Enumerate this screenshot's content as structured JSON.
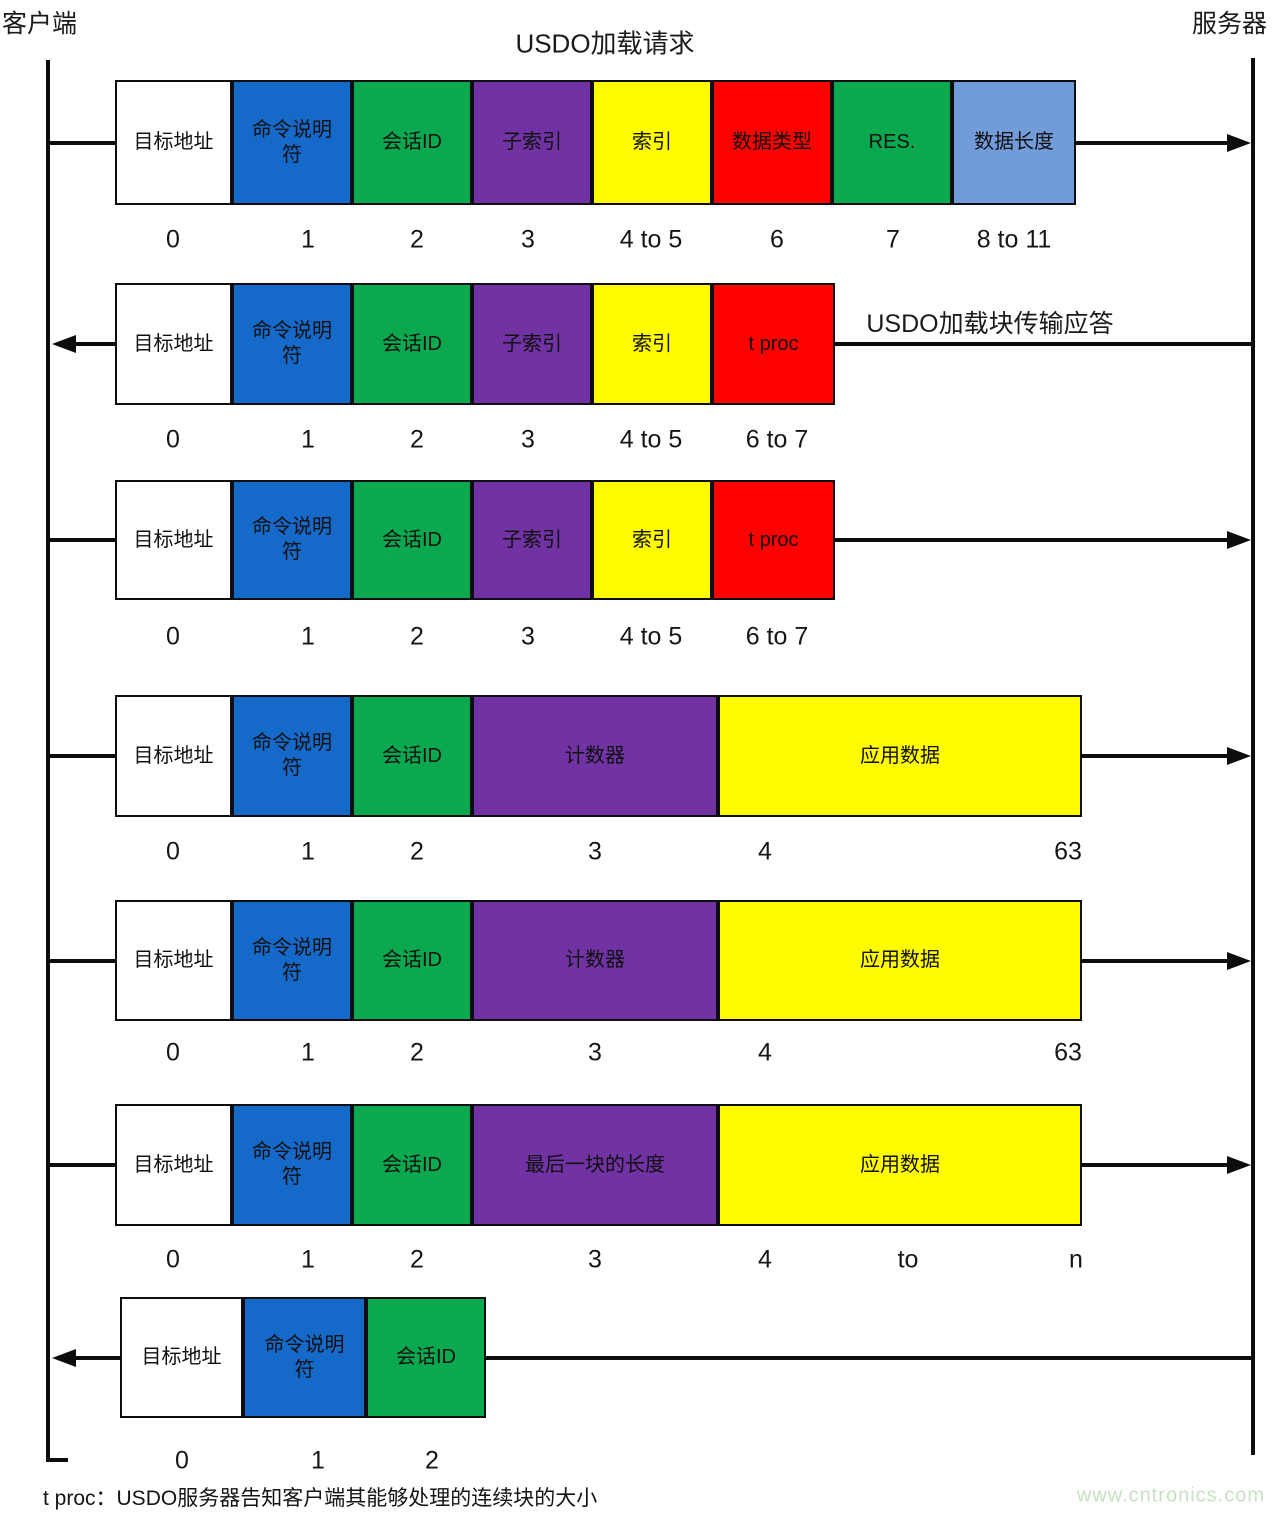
{
  "actors": {
    "client": "客户端",
    "server": "服务器"
  },
  "titles": {
    "request": "USDO加载请求",
    "response": "USDO加载块传输应答"
  },
  "colors": {
    "white": "#ffffff",
    "blue": "#1569c8",
    "green": "#0ba94f",
    "purple": "#7133a4",
    "yellow": "#fffc00",
    "red": "#fe0000",
    "lightblue": "#729bd9"
  },
  "rows": [
    {
      "direction": "to-server",
      "cells": [
        {
          "label": "目标地址",
          "color": "white"
        },
        {
          "label": "命令说明\n符",
          "color": "blue"
        },
        {
          "label": "会话ID",
          "color": "green"
        },
        {
          "label": "子索引",
          "color": "purple"
        },
        {
          "label": "索引",
          "color": "yellow"
        },
        {
          "label": "数据类型",
          "color": "red"
        },
        {
          "label": "RES.",
          "color": "green"
        },
        {
          "label": "数据长度",
          "color": "lightblue"
        }
      ],
      "bytes": [
        "0",
        "1",
        "2",
        "3",
        "4 to 5",
        "6",
        "7",
        "8 to 11"
      ]
    },
    {
      "direction": "to-client",
      "cells": [
        {
          "label": "目标地址",
          "color": "white"
        },
        {
          "label": "命令说明\n符",
          "color": "blue"
        },
        {
          "label": "会话ID",
          "color": "green"
        },
        {
          "label": "子索引",
          "color": "purple"
        },
        {
          "label": "索引",
          "color": "yellow"
        },
        {
          "label": "t proc",
          "color": "red"
        }
      ],
      "bytes": [
        "0",
        "1",
        "2",
        "3",
        "4 to 5",
        "6 to 7"
      ]
    },
    {
      "direction": "to-server",
      "cells": [
        {
          "label": "目标地址",
          "color": "white"
        },
        {
          "label": "命令说明\n符",
          "color": "blue"
        },
        {
          "label": "会话ID",
          "color": "green"
        },
        {
          "label": "子索引",
          "color": "purple"
        },
        {
          "label": "索引",
          "color": "yellow"
        },
        {
          "label": "t proc",
          "color": "red"
        }
      ],
      "bytes": [
        "0",
        "1",
        "2",
        "3",
        "4 to 5",
        "6 to 7"
      ]
    },
    {
      "direction": "to-server",
      "cells": [
        {
          "label": "目标地址",
          "color": "white"
        },
        {
          "label": "命令说明\n符",
          "color": "blue"
        },
        {
          "label": "会话ID",
          "color": "green"
        },
        {
          "label": "计数器",
          "color": "purple"
        },
        {
          "label": "应用数据",
          "color": "yellow"
        }
      ],
      "bytes": [
        "0",
        "1",
        "2",
        "3",
        "4",
        "63"
      ]
    },
    {
      "direction": "to-server",
      "cells": [
        {
          "label": "目标地址",
          "color": "white"
        },
        {
          "label": "命令说明\n符",
          "color": "blue"
        },
        {
          "label": "会话ID",
          "color": "green"
        },
        {
          "label": "计数器",
          "color": "purple"
        },
        {
          "label": "应用数据",
          "color": "yellow"
        }
      ],
      "bytes": [
        "0",
        "1",
        "2",
        "3",
        "4",
        "63"
      ]
    },
    {
      "direction": "to-server",
      "cells": [
        {
          "label": "目标地址",
          "color": "white"
        },
        {
          "label": "命令说明\n符",
          "color": "blue"
        },
        {
          "label": "会话ID",
          "color": "green"
        },
        {
          "label": "最后一块的长度",
          "color": "purple"
        },
        {
          "label": "应用数据",
          "color": "yellow"
        }
      ],
      "bytes": [
        "0",
        "1",
        "2",
        "3",
        "4",
        "to",
        "n"
      ]
    },
    {
      "direction": "to-client",
      "cells": [
        {
          "label": "目标地址",
          "color": "white"
        },
        {
          "label": "命令说明\n符",
          "color": "blue"
        },
        {
          "label": "会话ID",
          "color": "green"
        }
      ],
      "bytes": [
        "0",
        "1",
        "2"
      ]
    }
  ],
  "footer": {
    "note": "t proc：USDO服务器告知客户端其能够处理的连续块的大小",
    "watermark": "www.cntronics.com"
  }
}
